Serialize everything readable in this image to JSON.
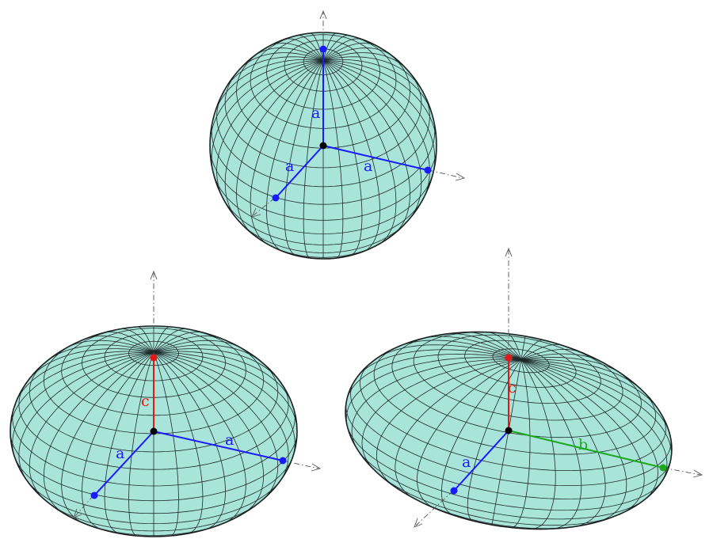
{
  "colors": {
    "surface": "#a8e4da",
    "outline": "#1a1a1a",
    "axis_a": "#1a1aff",
    "axis_c": "#e01818",
    "axis_b": "#1ea81e",
    "center": "#000000"
  },
  "figures": [
    {
      "shape": "sphere",
      "labels": {
        "axis1": "a",
        "axis2": "a",
        "axis3": "a"
      },
      "axis_colors": {
        "axis1": "#1a1aff",
        "axis2": "#1a1aff",
        "axis3": "#1a1aff"
      }
    },
    {
      "shape": "oblate-spheroid",
      "labels": {
        "axis1": "a",
        "axis2": "a",
        "axis3": "c"
      },
      "axis_colors": {
        "axis1": "#1a1aff",
        "axis2": "#1a1aff",
        "axis3": "#e01818"
      }
    },
    {
      "shape": "triaxial-ellipsoid",
      "labels": {
        "axis1": "a",
        "axis2": "b",
        "axis3": "c"
      },
      "axis_colors": {
        "axis1": "#1a1aff",
        "axis2": "#1ea81e",
        "axis3": "#e01818"
      }
    }
  ]
}
